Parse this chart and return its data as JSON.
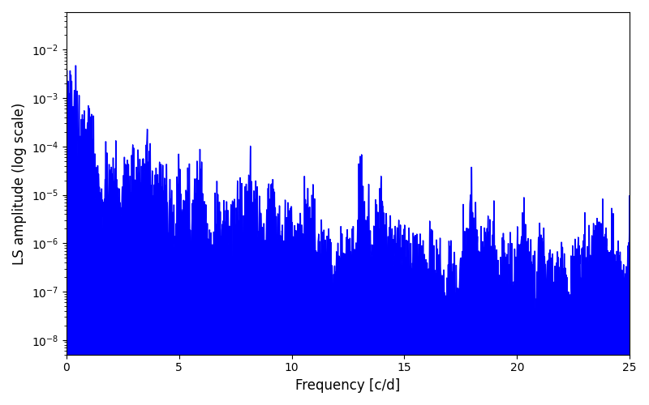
{
  "title": "",
  "xlabel": "Frequency [c/d]",
  "ylabel": "LS amplitude (log scale)",
  "xlim": [
    0,
    25
  ],
  "ylim_min": 5e-09,
  "ylim_max": 0.06,
  "line_color": "#0000ff",
  "background_color": "#ffffff",
  "figsize": [
    8.0,
    5.0
  ],
  "dpi": 100,
  "yscale": "log",
  "seed": 42,
  "n_points": 8000,
  "freq_max": 25.0
}
